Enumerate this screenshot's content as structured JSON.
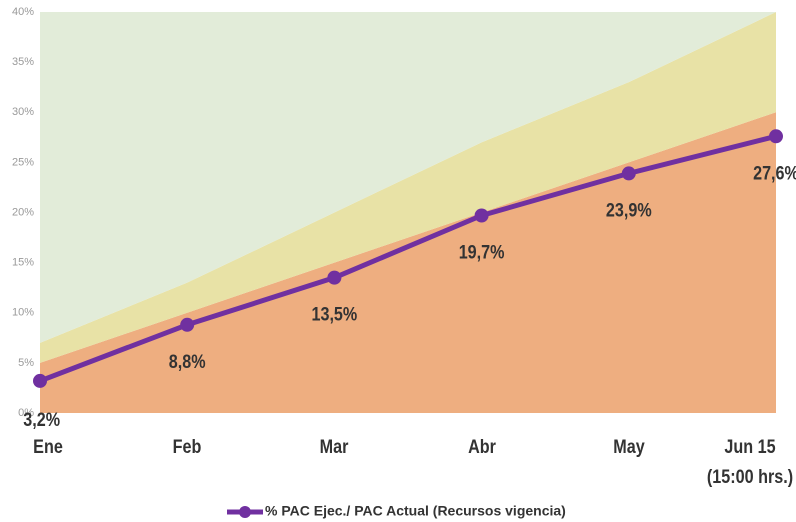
{
  "chart_data": {
    "type": "line",
    "categories": [
      "Ene",
      "Feb",
      "Mar",
      "Abr",
      "May",
      "Jun 15 (15:00 hrs.)"
    ],
    "ylim": [
      0,
      40
    ],
    "yticks": [
      {
        "value": 0,
        "label": "0%"
      },
      {
        "value": 5,
        "label": "5%"
      },
      {
        "value": 10,
        "label": "10%"
      },
      {
        "value": 15,
        "label": "15%"
      },
      {
        "value": 20,
        "label": "20%"
      },
      {
        "value": 25,
        "label": "25%"
      },
      {
        "value": 30,
        "label": "30%"
      },
      {
        "value": 35,
        "label": "35%"
      },
      {
        "value": 40,
        "label": "40%"
      }
    ],
    "areas": [
      {
        "color": "#eeae80",
        "values": [
          5,
          10,
          15,
          20,
          25,
          30
        ]
      },
      {
        "color": "#e8e2a6",
        "values": [
          2,
          3,
          5,
          7,
          8,
          10
        ]
      },
      {
        "color": "#e2ecd9",
        "values": [
          33,
          27,
          20,
          13,
          7,
          0
        ]
      }
    ],
    "series": [
      {
        "name": "% PAC Ejec./ PAC Actual (Recursos vigencia)",
        "color": "#7030a0",
        "values": [
          3.2,
          8.8,
          13.5,
          19.7,
          23.9,
          27.6
        ],
        "value_labels": [
          "3,2%",
          "8,8%",
          "13,5%",
          "19,7%",
          "23,9%",
          "27,6%"
        ]
      }
    ],
    "legend": "bottom"
  }
}
